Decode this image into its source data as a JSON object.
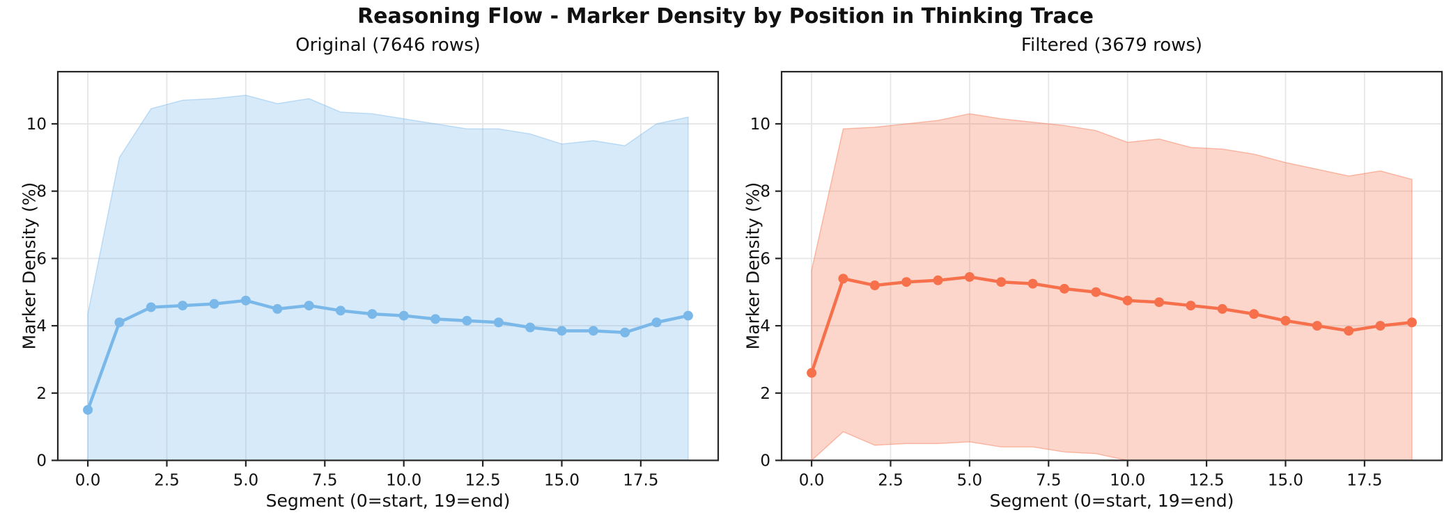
{
  "figure": {
    "suptitle": "Reasoning Flow - Marker Density by Position in Thinking Trace",
    "background": "#ffffff",
    "grid_color": "#e6e6e6",
    "spine_color": "#252525",
    "text_color": "#111111"
  },
  "chart_data": [
    {
      "type": "line",
      "title": "Original (7646 rows)",
      "xlabel": "Segment (0=start, 19=end)",
      "ylabel": "Marker Density (%)",
      "legend": "none",
      "grid": true,
      "x": [
        0,
        1,
        2,
        3,
        4,
        5,
        6,
        7,
        8,
        9,
        10,
        11,
        12,
        13,
        14,
        15,
        16,
        17,
        18,
        19
      ],
      "series": [
        {
          "name": "mean-marker-density",
          "values": [
            1.5,
            4.1,
            4.55,
            4.6,
            4.65,
            4.75,
            4.5,
            4.6,
            4.45,
            4.35,
            4.3,
            4.2,
            4.15,
            4.1,
            3.95,
            3.85,
            3.85,
            3.8,
            4.1,
            4.3
          ]
        }
      ],
      "band": {
        "name": "std-band",
        "upper": [
          4.35,
          9.0,
          10.45,
          10.7,
          10.75,
          10.85,
          10.6,
          10.75,
          10.35,
          10.3,
          10.15,
          10.0,
          9.85,
          9.85,
          9.7,
          9.4,
          9.5,
          9.35,
          10.0,
          10.2
        ],
        "lower": [
          0,
          0,
          0,
          0,
          0,
          0,
          0,
          0,
          0,
          0,
          0,
          0,
          0,
          0,
          0,
          0,
          0,
          0,
          0,
          0
        ]
      },
      "xticks": [
        0.0,
        2.5,
        5.0,
        7.5,
        10.0,
        12.5,
        15.0,
        17.5
      ],
      "xtick_labels": [
        "0.0",
        "2.5",
        "5.0",
        "7.5",
        "10.0",
        "12.5",
        "15.0",
        "17.5"
      ],
      "yticks": [
        0,
        2,
        4,
        6,
        8,
        10
      ],
      "ytick_labels": [
        "0",
        "2",
        "4",
        "6",
        "8",
        "10"
      ],
      "xlim": [
        -0.95,
        19.95
      ],
      "ylim": [
        0,
        11.55
      ],
      "line_color": "#7ab8ea",
      "band_color": "#7ab8ea",
      "band_opacity": 0.3
    },
    {
      "type": "line",
      "title": "Filtered (3679 rows)",
      "xlabel": "Segment (0=start, 19=end)",
      "ylabel": "Marker Density (%)",
      "legend": "none",
      "grid": true,
      "x": [
        0,
        1,
        2,
        3,
        4,
        5,
        6,
        7,
        8,
        9,
        10,
        11,
        12,
        13,
        14,
        15,
        16,
        17,
        18,
        19
      ],
      "series": [
        {
          "name": "mean-marker-density",
          "values": [
            2.6,
            5.4,
            5.2,
            5.3,
            5.35,
            5.45,
            5.3,
            5.25,
            5.1,
            5.0,
            4.75,
            4.7,
            4.6,
            4.5,
            4.35,
            4.15,
            4.0,
            3.85,
            4.0,
            4.1
          ]
        }
      ],
      "band": {
        "name": "std-band",
        "upper": [
          5.65,
          9.85,
          9.9,
          10.0,
          10.1,
          10.3,
          10.15,
          10.05,
          9.95,
          9.8,
          9.45,
          9.55,
          9.3,
          9.25,
          9.1,
          8.85,
          8.65,
          8.45,
          8.6,
          8.35
        ],
        "lower": [
          0,
          0.85,
          0.45,
          0.5,
          0.5,
          0.55,
          0.4,
          0.4,
          0.25,
          0.2,
          0,
          0,
          0,
          0,
          0,
          0,
          0,
          0,
          0,
          0
        ]
      },
      "xticks": [
        0.0,
        2.5,
        5.0,
        7.5,
        10.0,
        12.5,
        15.0,
        17.5
      ],
      "xtick_labels": [
        "0.0",
        "2.5",
        "5.0",
        "7.5",
        "10.0",
        "12.5",
        "15.0",
        "17.5"
      ],
      "yticks": [
        0,
        2,
        4,
        6,
        8,
        10
      ],
      "ytick_labels": [
        "0",
        "2",
        "4",
        "6",
        "8",
        "10"
      ],
      "xlim": [
        -0.95,
        19.95
      ],
      "ylim": [
        0,
        11.55
      ],
      "line_color": "#f7704c",
      "band_color": "#f7704c",
      "band_opacity": 0.29
    }
  ]
}
